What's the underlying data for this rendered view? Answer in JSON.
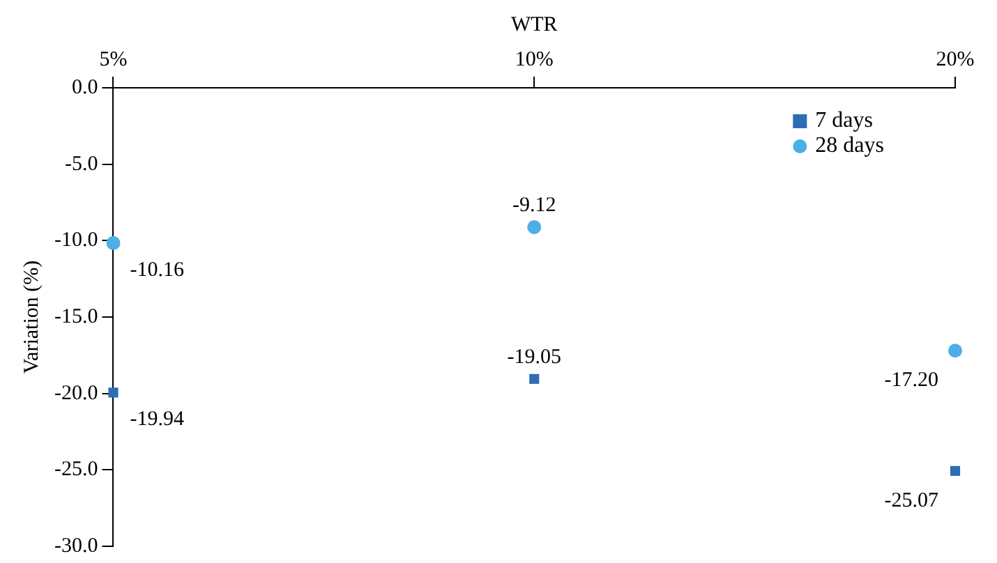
{
  "chart_data": {
    "type": "scatter",
    "xlabel": "WTR",
    "ylabel": "Variation (%)",
    "categories": [
      "5%",
      "10%",
      "20%"
    ],
    "ylim": [
      -30,
      0
    ],
    "yticks": [
      {
        "value": 0,
        "label": "0.0"
      },
      {
        "value": -5,
        "label": "-5.0"
      },
      {
        "value": -10,
        "label": "-10.0"
      },
      {
        "value": -15,
        "label": "-15.0"
      },
      {
        "value": -20,
        "label": "-20.0"
      },
      {
        "value": -25,
        "label": "-25.0"
      },
      {
        "value": -30,
        "label": "-30.0"
      }
    ],
    "grid": false,
    "legend": "top right",
    "series": [
      {
        "name": "7 days",
        "color": "#2e6db4",
        "marker": "square",
        "values": [
          -19.94,
          -19.05,
          -25.07
        ],
        "value_labels": [
          "-19.94",
          "-19.05",
          "-25.07"
        ]
      },
      {
        "name": "28 days",
        "color": "#4daee8",
        "marker": "circle",
        "values": [
          -10.16,
          -9.12,
          -17.2
        ],
        "value_labels": [
          "-10.16",
          "-9.12",
          "-17.20"
        ]
      }
    ]
  }
}
